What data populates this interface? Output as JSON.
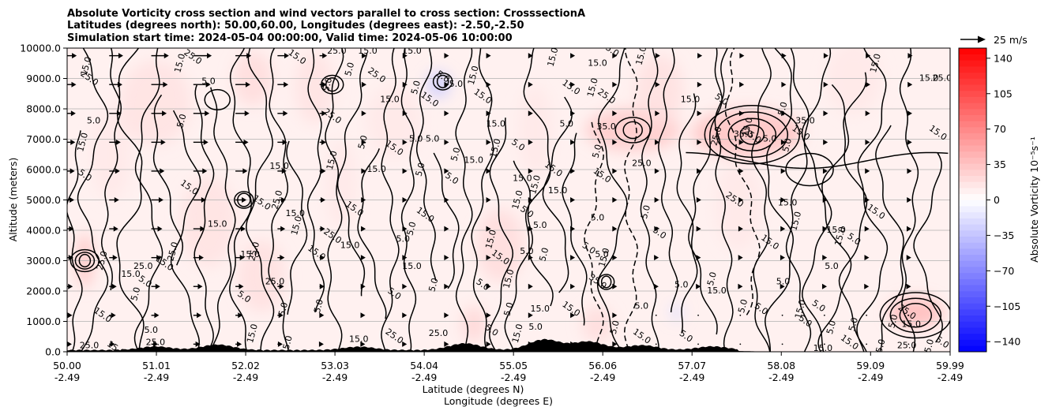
{
  "chart_data": {
    "type": "heatmap",
    "title_lines": [
      "Absolute Vorticity cross section and wind vectors parallel to cross section: CrosssectionA",
      "Latitudes (degrees north): 50.00,60.00, Longitudes (degrees east): -2.50,-2.50",
      "Simulation start time: 2024-05-04 00:00:00, Valid time: 2024-05-06 10:00:00"
    ],
    "xlabel_lines": [
      "Latitude (degrees N)",
      "Longitude (degrees E)"
    ],
    "ylabel": "Altitude (meters)",
    "xlim": [
      50.0,
      59.99
    ],
    "ylim": [
      0,
      10000
    ],
    "x_ticks": [
      {
        "value": 50.0,
        "lat": "50.00",
        "lon": "-2.49"
      },
      {
        "value": 51.01,
        "lat": "51.01",
        "lon": "-2.49"
      },
      {
        "value": 52.02,
        "lat": "52.02",
        "lon": "-2.49"
      },
      {
        "value": 53.03,
        "lat": "53.03",
        "lon": "-2.49"
      },
      {
        "value": 54.04,
        "lat": "54.04",
        "lon": "-2.49"
      },
      {
        "value": 55.05,
        "lat": "55.05",
        "lon": "-2.49"
      },
      {
        "value": 56.06,
        "lat": "56.06",
        "lon": "-2.49"
      },
      {
        "value": 57.07,
        "lat": "57.07",
        "lon": "-2.49"
      },
      {
        "value": 58.08,
        "lat": "58.08",
        "lon": "-2.49"
      },
      {
        "value": 59.09,
        "lat": "59.09",
        "lon": "-2.49"
      },
      {
        "value": 59.99,
        "lat": "59.99",
        "lon": "-2.49"
      }
    ],
    "y_ticks": [
      {
        "value": 0,
        "label": "0.0"
      },
      {
        "value": 1000,
        "label": "1000.0"
      },
      {
        "value": 2000,
        "label": "2000.0"
      },
      {
        "value": 3000,
        "label": "3000.0"
      },
      {
        "value": 4000,
        "label": "4000.0"
      },
      {
        "value": 5000,
        "label": "5000.0"
      },
      {
        "value": 6000,
        "label": "6000.0"
      },
      {
        "value": 7000,
        "label": "7000.0"
      },
      {
        "value": 8000,
        "label": "8000.0"
      },
      {
        "value": 9000,
        "label": "9000.0"
      },
      {
        "value": 10000,
        "label": "10000.0"
      }
    ],
    "grid": "horizontal",
    "colorbar": {
      "label": "Absolute Vorticity 10⁻⁵s⁻¹",
      "range": [
        -150,
        150
      ],
      "ticks": [
        {
          "value": 140,
          "label": "140"
        },
        {
          "value": 105,
          "label": "105"
        },
        {
          "value": 70,
          "label": "70"
        },
        {
          "value": 35,
          "label": "35"
        },
        {
          "value": 0,
          "label": "0"
        },
        {
          "value": -35,
          "label": "−35"
        },
        {
          "value": -70,
          "label": "−70"
        },
        {
          "value": -105,
          "label": "−105"
        },
        {
          "value": -140,
          "label": "−140"
        }
      ],
      "colors": {
        "low": "#0000ff",
        "mid": "#ffffff",
        "high": "#ff0000"
      }
    },
    "quiver_key": {
      "label": "25 m/s",
      "speed": 25
    },
    "contour_levels": [
      5.0,
      15.0,
      25.0,
      35.0
    ],
    "contour_labels": [
      {
        "text": "15.0",
        "lat": 50.22,
        "alt": 9400
      },
      {
        "text": "25.0",
        "lat": 50.25,
        "alt": 9000
      },
      {
        "text": "5.0",
        "lat": 50.3,
        "alt": 7600
      },
      {
        "text": "15.0",
        "lat": 50.18,
        "alt": 6900
      },
      {
        "text": "5.0",
        "lat": 50.2,
        "alt": 5800
      },
      {
        "text": "15.0",
        "lat": 50.72,
        "alt": 2550
      },
      {
        "text": "25.0",
        "lat": 50.4,
        "alt": 3000
      },
      {
        "text": "5.0",
        "lat": 50.88,
        "alt": 2300
      },
      {
        "text": "25.0",
        "lat": 50.86,
        "alt": 2800
      },
      {
        "text": "5.0",
        "lat": 50.78,
        "alt": 1900
      },
      {
        "text": "15.0",
        "lat": 50.4,
        "alt": 1200
      },
      {
        "text": "25.0",
        "lat": 50.25,
        "alt": 200
      },
      {
        "text": "15.0",
        "lat": 51.28,
        "alt": 9500
      },
      {
        "text": "25.0",
        "lat": 51.42,
        "alt": 9700
      },
      {
        "text": "5.0",
        "lat": 51.6,
        "alt": 8900
      },
      {
        "text": "5.0",
        "lat": 51.3,
        "alt": 7600
      },
      {
        "text": "15.0",
        "lat": 51.38,
        "alt": 5400
      },
      {
        "text": "15.0",
        "lat": 51.7,
        "alt": 4200
      },
      {
        "text": "25.0",
        "lat": 51.2,
        "alt": 3300
      },
      {
        "text": "15.0",
        "lat": 51.1,
        "alt": 2900
      },
      {
        "text": "15.0",
        "lat": 52.07,
        "alt": 3200
      },
      {
        "text": "25.0",
        "lat": 52.12,
        "alt": 3300
      },
      {
        "text": "5.0",
        "lat": 52.0,
        "alt": 1800
      },
      {
        "text": "15.0",
        "lat": 52.4,
        "alt": 6100
      },
      {
        "text": "25.0",
        "lat": 52.38,
        "alt": 5000
      },
      {
        "text": "15.0",
        "lat": 52.2,
        "alt": 4900
      },
      {
        "text": "15.0",
        "lat": 52.58,
        "alt": 4550
      },
      {
        "text": "15.0",
        "lat": 52.6,
        "alt": 4150
      },
      {
        "text": "15.0",
        "lat": 52.82,
        "alt": 3250
      },
      {
        "text": "25.0",
        "lat": 52.35,
        "alt": 2300
      },
      {
        "text": "5.0",
        "lat": 52.45,
        "alt": 1400
      },
      {
        "text": "25.0",
        "lat": 53.0,
        "alt": 3800
      },
      {
        "text": "15.0",
        "lat": 53.2,
        "alt": 3500
      },
      {
        "text": "5.0",
        "lat": 52.85,
        "alt": 1500
      },
      {
        "text": "15.0",
        "lat": 52.6,
        "alt": 9700
      },
      {
        "text": "25.0",
        "lat": 53.05,
        "alt": 9900
      },
      {
        "text": "5.0",
        "lat": 52.95,
        "alt": 8800
      },
      {
        "text": "25.0",
        "lat": 53.0,
        "alt": 7750
      },
      {
        "text": "15.0",
        "lat": 53.4,
        "alt": 9900
      },
      {
        "text": "5.0",
        "lat": 53.2,
        "alt": 9300
      },
      {
        "text": "25.0",
        "lat": 53.5,
        "alt": 9100
      },
      {
        "text": "15.0",
        "lat": 53.65,
        "alt": 8300
      },
      {
        "text": "5.0",
        "lat": 53.35,
        "alt": 6900
      },
      {
        "text": "15.0",
        "lat": 53.7,
        "alt": 6700
      },
      {
        "text": "15.0",
        "lat": 53.5,
        "alt": 6000
      },
      {
        "text": "15.0",
        "lat": 53.0,
        "alt": 6300
      },
      {
        "text": "15.0",
        "lat": 53.25,
        "alt": 4700
      },
      {
        "text": "5.0",
        "lat": 53.8,
        "alt": 3700
      },
      {
        "text": "5.0",
        "lat": 53.9,
        "alt": 4050
      },
      {
        "text": "15.0",
        "lat": 54.05,
        "alt": 4500
      },
      {
        "text": "15.0",
        "lat": 53.9,
        "alt": 2800
      },
      {
        "text": "5.0",
        "lat": 54.15,
        "alt": 2200
      },
      {
        "text": "5.0",
        "lat": 53.7,
        "alt": 1900
      },
      {
        "text": "15.0",
        "lat": 53.9,
        "alt": 9900
      },
      {
        "text": "5.0",
        "lat": 53.95,
        "alt": 8700
      },
      {
        "text": "15.0",
        "lat": 54.1,
        "alt": 8300
      },
      {
        "text": "5.0 5.0",
        "lat": 54.04,
        "alt": 7000
      },
      {
        "text": "5.0",
        "lat": 54.0,
        "alt": 6000
      },
      {
        "text": "5.0",
        "lat": 54.25,
        "alt": 9050
      },
      {
        "text": "5.0",
        "lat": 54.4,
        "alt": 8800
      },
      {
        "text": "15.0",
        "lat": 54.6,
        "alt": 9100
      },
      {
        "text": "15.0",
        "lat": 54.7,
        "alt": 8400
      },
      {
        "text": "15.0",
        "lat": 54.85,
        "alt": 7500
      },
      {
        "text": "5.0",
        "lat": 54.4,
        "alt": 6500
      },
      {
        "text": "5.0",
        "lat": 54.35,
        "alt": 5700
      },
      {
        "text": "15.0",
        "lat": 54.6,
        "alt": 6300
      },
      {
        "text": "15.0",
        "lat": 54.85,
        "alt": 6700
      },
      {
        "text": "5.0",
        "lat": 55.1,
        "alt": 6800
      },
      {
        "text": "15.0",
        "lat": 55.15,
        "alt": 5700
      },
      {
        "text": "15.0",
        "lat": 55.3,
        "alt": 5500
      },
      {
        "text": "15.0",
        "lat": 55.5,
        "alt": 6000
      },
      {
        "text": "15.0",
        "lat": 55.55,
        "alt": 5300
      },
      {
        "text": "15.0",
        "lat": 55.1,
        "alt": 5000
      },
      {
        "text": "5.0",
        "lat": 55.2,
        "alt": 4600
      },
      {
        "text": "5.0",
        "lat": 55.35,
        "alt": 4150
      },
      {
        "text": "15.0",
        "lat": 54.8,
        "alt": 3700
      },
      {
        "text": "15.0",
        "lat": 54.9,
        "alt": 3100
      },
      {
        "text": "5.0",
        "lat": 55.2,
        "alt": 3300
      },
      {
        "text": "5.0",
        "lat": 55.4,
        "alt": 3200
      },
      {
        "text": "5.0",
        "lat": 55.9,
        "alt": 3400
      },
      {
        "text": "5.0",
        "lat": 56.05,
        "alt": 3200
      },
      {
        "text": "15.0",
        "lat": 55.0,
        "alt": 2400
      },
      {
        "text": "5.0",
        "lat": 54.7,
        "alt": 2200
      },
      {
        "text": "15.0",
        "lat": 55.35,
        "alt": 1400
      },
      {
        "text": "5.0",
        "lat": 55.0,
        "alt": 1400
      },
      {
        "text": "15.0",
        "lat": 55.7,
        "alt": 1400
      },
      {
        "text": "5.0",
        "lat": 55.3,
        "alt": 800
      },
      {
        "text": "15.0",
        "lat": 55.1,
        "alt": 600
      },
      {
        "text": "5.0",
        "lat": 54.8,
        "alt": 700
      },
      {
        "text": "25.0",
        "lat": 54.2,
        "alt": 600
      },
      {
        "text": "15.0",
        "lat": 55.5,
        "alt": 9700
      },
      {
        "text": "15.0",
        "lat": 55.7,
        "alt": 8700
      },
      {
        "text": "5.0",
        "lat": 55.65,
        "alt": 7500
      },
      {
        "text": "15.0",
        "lat": 56.5,
        "alt": 9750
      },
      {
        "text": "25.0",
        "lat": 56.14,
        "alt": 9960
      },
      {
        "text": "15.0",
        "lat": 56.0,
        "alt": 9500
      },
      {
        "text": "15.0",
        "lat": 55.95,
        "alt": 8700
      },
      {
        "text": "25.0",
        "lat": 56.1,
        "alt": 8400
      },
      {
        "text": "35.0",
        "lat": 56.1,
        "alt": 7400
      },
      {
        "text": "5.0",
        "lat": 56.0,
        "alt": 6600
      },
      {
        "text": "15.0",
        "lat": 56.05,
        "alt": 5800
      },
      {
        "text": "5.0",
        "lat": 56.0,
        "alt": 4400
      },
      {
        "text": "15.0",
        "lat": 56.08,
        "alt": 3100
      },
      {
        "text": "35.0",
        "lat": 56.0,
        "alt": 2300
      },
      {
        "text": "5.0",
        "lat": 56.5,
        "alt": 1500
      },
      {
        "text": "5.0",
        "lat": 56.2,
        "alt": 800
      },
      {
        "text": "15.0",
        "lat": 56.5,
        "alt": 500
      },
      {
        "text": "25.0",
        "lat": 56.5,
        "alt": 6200
      },
      {
        "text": "5.0",
        "lat": 56.55,
        "alt": 4600
      },
      {
        "text": "5.0",
        "lat": 56.7,
        "alt": 3900
      },
      {
        "text": "5.0",
        "lat": 56.95,
        "alt": 2200
      },
      {
        "text": "5.0",
        "lat": 57.3,
        "alt": 2400
      },
      {
        "text": "5.0",
        "lat": 57.0,
        "alt": 500
      },
      {
        "text": "15.0",
        "lat": 57.05,
        "alt": 8300
      },
      {
        "text": "25.0",
        "lat": 57.35,
        "alt": 7100
      },
      {
        "text": "5.0",
        "lat": 57.4,
        "alt": 8300
      },
      {
        "text": "35.0",
        "lat": 57.65,
        "alt": 7150
      },
      {
        "text": "15.0",
        "lat": 57.7,
        "alt": 7400
      },
      {
        "text": "25.0",
        "lat": 57.75,
        "alt": 7100
      },
      {
        "text": "5.0",
        "lat": 57.95,
        "alt": 7000
      },
      {
        "text": "5.0",
        "lat": 58.15,
        "alt": 6800
      },
      {
        "text": "15.0",
        "lat": 58.3,
        "alt": 7200
      },
      {
        "text": "35.0",
        "lat": 58.35,
        "alt": 7600
      },
      {
        "text": "5.0",
        "lat": 58.1,
        "alt": 8000
      },
      {
        "text": "25.0",
        "lat": 57.55,
        "alt": 5000
      },
      {
        "text": "15.0",
        "lat": 58.15,
        "alt": 4900
      },
      {
        "text": "15.0",
        "lat": 58.25,
        "alt": 4300
      },
      {
        "text": "15.0",
        "lat": 57.95,
        "alt": 3600
      },
      {
        "text": "5.0",
        "lat": 58.1,
        "alt": 2300
      },
      {
        "text": "5.0",
        "lat": 57.65,
        "alt": 1500
      },
      {
        "text": "5.0",
        "lat": 57.85,
        "alt": 1400
      },
      {
        "text": "15.0",
        "lat": 57.35,
        "alt": 2000
      },
      {
        "text": "15.0",
        "lat": 58.3,
        "alt": 1400
      },
      {
        "text": "5.0",
        "lat": 58.35,
        "alt": 1000
      },
      {
        "text": "15.0",
        "lat": 58.7,
        "alt": 4000
      },
      {
        "text": "15.0",
        "lat": 58.75,
        "alt": 3800
      },
      {
        "text": "5.0",
        "lat": 58.9,
        "alt": 3700
      },
      {
        "text": "5.0",
        "lat": 58.65,
        "alt": 2800
      },
      {
        "text": "5.0",
        "lat": 58.9,
        "alt": 900
      },
      {
        "text": "15.0",
        "lat": 59.15,
        "alt": 4600
      },
      {
        "text": "15.0",
        "lat": 59.75,
        "alt": 9000
      },
      {
        "text": "15.0",
        "lat": 59.15,
        "alt": 9500
      },
      {
        "text": "15.0",
        "lat": 59.85,
        "alt": 7200
      },
      {
        "text": "25.0",
        "lat": 59.9,
        "alt": 9000
      },
      {
        "text": "5.0",
        "lat": 59.35,
        "alt": 1000
      },
      {
        "text": "25.0",
        "lat": 59.5,
        "alt": 1300
      },
      {
        "text": "15.0",
        "lat": 59.55,
        "alt": 900
      },
      {
        "text": "15.0",
        "lat": 59.75,
        "alt": 100
      },
      {
        "text": "5.0",
        "lat": 59.9,
        "alt": 300
      },
      {
        "text": "25.0",
        "lat": 59.5,
        "alt": 200
      },
      {
        "text": "15.0",
        "lat": 59.2,
        "alt": 100
      },
      {
        "text": "15.0",
        "lat": 58.85,
        "alt": 300
      },
      {
        "text": "15.0",
        "lat": 58.55,
        "alt": 100
      },
      {
        "text": "5.0",
        "lat": 58.65,
        "alt": 800
      },
      {
        "text": "5.0",
        "lat": 58.5,
        "alt": 1500
      },
      {
        "text": "25.0",
        "lat": 51.0,
        "alt": 300
      },
      {
        "text": "15.0",
        "lat": 52.1,
        "alt": 600
      },
      {
        "text": "25.0",
        "lat": 53.7,
        "alt": 500
      },
      {
        "text": "15.0",
        "lat": 53.3,
        "alt": 400
      },
      {
        "text": "5.0",
        "lat": 52.5,
        "alt": 300
      },
      {
        "text": "15.0",
        "lat": 50.55,
        "alt": 100
      },
      {
        "text": "5.0",
        "lat": 50.95,
        "alt": 700
      }
    ]
  }
}
